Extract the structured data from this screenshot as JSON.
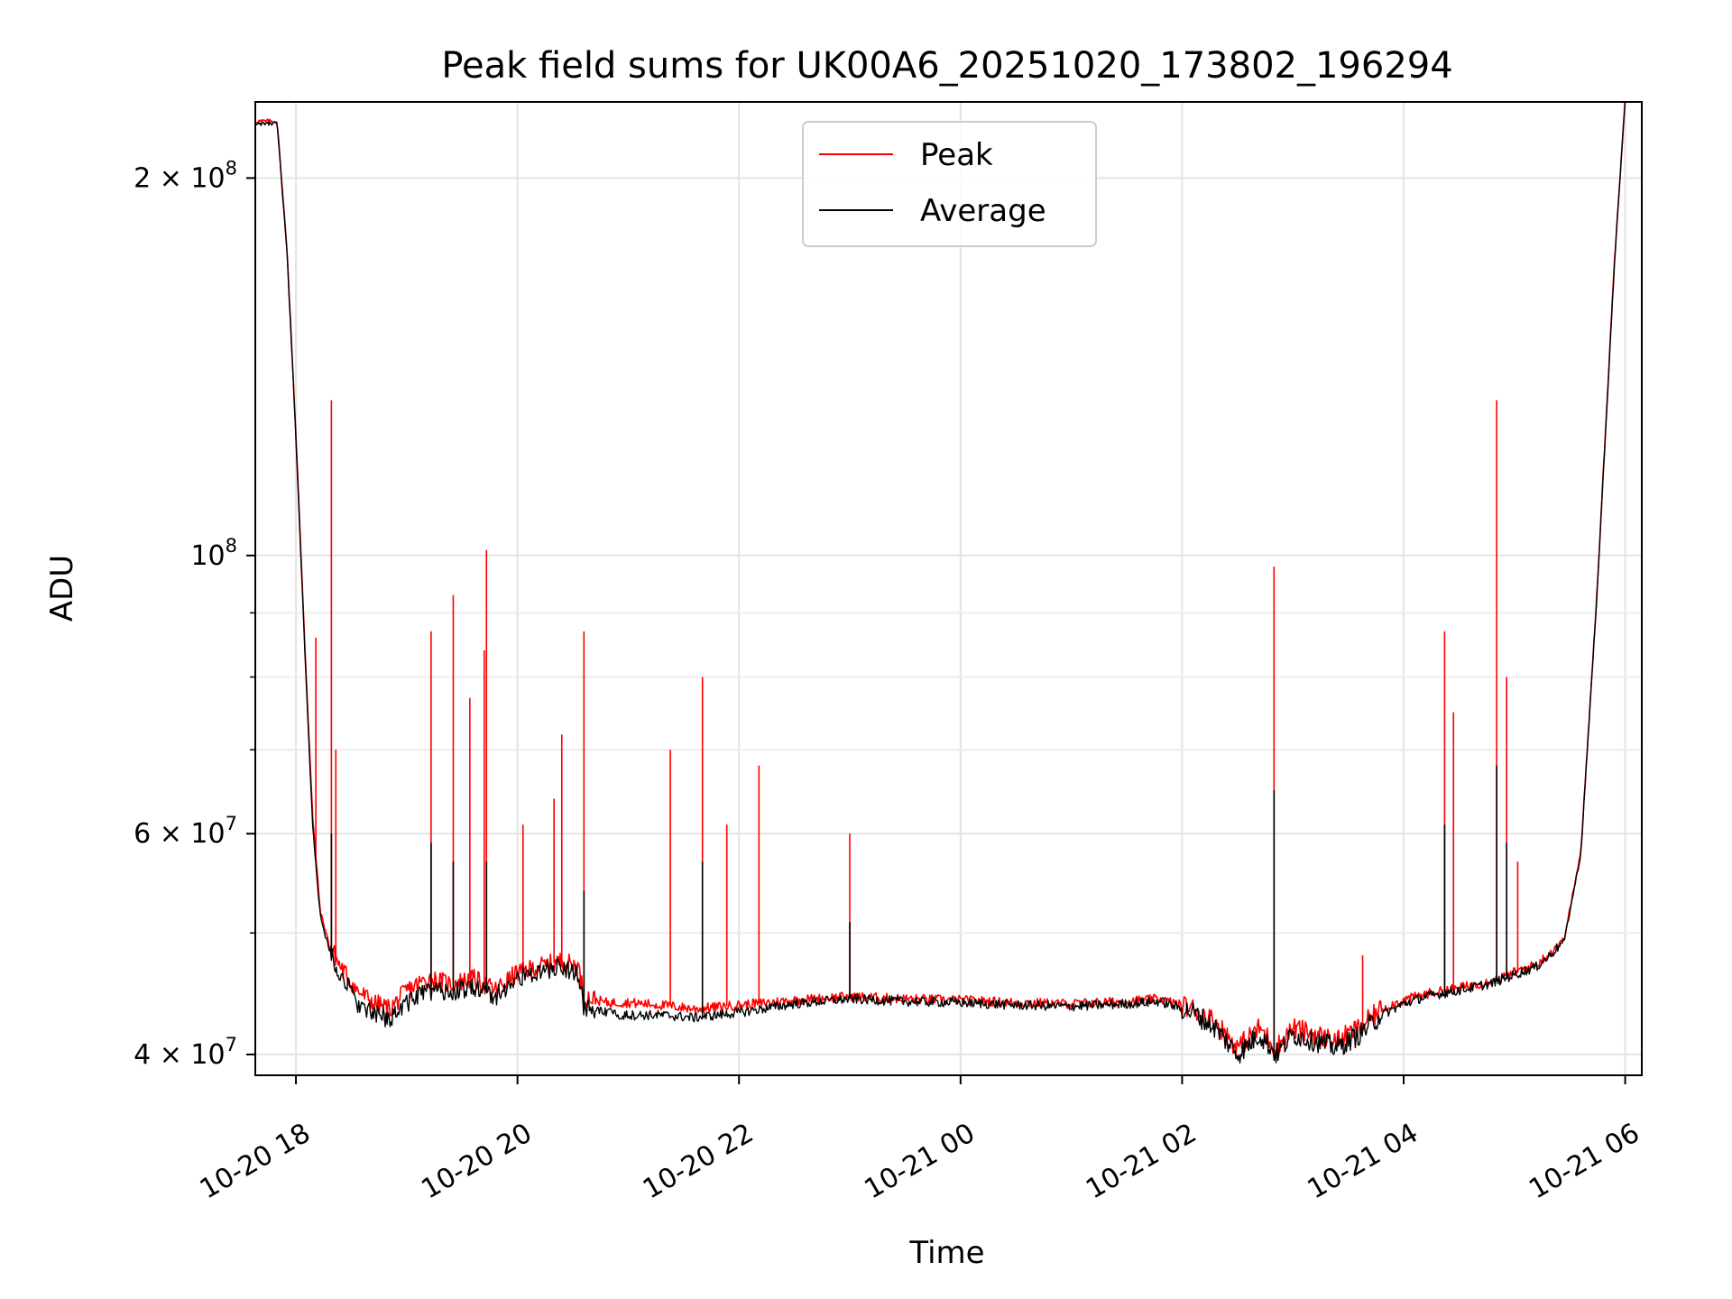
{
  "chart_data": {
    "type": "line",
    "title": "Peak field sums for UK00A6_20251020_173802_196294",
    "xlabel": "Time",
    "ylabel": "ADU",
    "yscale": "log",
    "ylim": [
      38500000,
      230000000
    ],
    "xlim_hours": [
      17.633,
      30.15
    ],
    "x_ticks": [
      {
        "label": "10-20 18",
        "hour": 18
      },
      {
        "label": "10-20 20",
        "hour": 20
      },
      {
        "label": "10-20 22",
        "hour": 22
      },
      {
        "label": "10-21 00",
        "hour": 24
      },
      {
        "label": "10-21 02",
        "hour": 26
      },
      {
        "label": "10-21 04",
        "hour": 28
      },
      {
        "label": "10-21 06",
        "hour": 30
      }
    ],
    "y_ticks": [
      {
        "base": "4 × 10",
        "exp": "7",
        "value": 40000000
      },
      {
        "base": "6 × 10",
        "exp": "7",
        "value": 60000000
      },
      {
        "base": "10",
        "exp": "8",
        "value": 100000000
      },
      {
        "base": "2 × 10",
        "exp": "8",
        "value": 200000000
      }
    ],
    "y_minor_ticks": [
      50000000,
      70000000,
      80000000,
      90000000
    ],
    "grid": true,
    "legend": {
      "position": "top-center",
      "entries": [
        {
          "label": "Peak",
          "color": "#ff0000"
        },
        {
          "label": "Average",
          "color": "#000000"
        }
      ]
    },
    "series": [
      {
        "name": "Peak",
        "color": "#ff0000",
        "x_hours": [
          17.64,
          17.83,
          17.92,
          18.0,
          18.08,
          18.15,
          18.22,
          18.3,
          18.4,
          18.55,
          18.7,
          18.85,
          19.0,
          19.2,
          19.4,
          19.6,
          19.8,
          20.0,
          20.2,
          20.4,
          20.55,
          20.6,
          20.8,
          21.0,
          21.3,
          21.6,
          22.0,
          22.5,
          23.0,
          23.5,
          24.0,
          24.5,
          25.0,
          25.5,
          25.8,
          26.1,
          26.3,
          26.5,
          26.7,
          26.85,
          27.0,
          27.2,
          27.4,
          27.6,
          27.8,
          28.0,
          28.2,
          28.5,
          28.8,
          29.0,
          29.2,
          29.3,
          29.45,
          29.6,
          29.75,
          29.9,
          30.0
        ],
        "y_values": [
          222000000,
          222000000,
          175000000,
          125000000,
          85000000,
          62000000,
          52000000,
          49000000,
          47000000,
          45000000,
          44000000,
          43500000,
          45000000,
          46000000,
          45500000,
          46000000,
          45000000,
          46500000,
          47000000,
          47500000,
          47000000,
          44500000,
          44000000,
          44000000,
          43800000,
          43500000,
          43800000,
          44200000,
          44500000,
          44300000,
          44200000,
          44000000,
          43900000,
          44100000,
          44300000,
          43500000,
          42500000,
          40500000,
          42000000,
          40500000,
          42000000,
          41500000,
          41000000,
          42000000,
          43500000,
          44200000,
          44700000,
          45200000,
          45800000,
          46500000,
          47200000,
          48000000,
          49500000,
          58000000,
          95000000,
          170000000,
          232000000
        ],
        "spikes": [
          {
            "hour": 18.18,
            "peak": 86000000
          },
          {
            "hour": 18.32,
            "peak": 133000000
          },
          {
            "hour": 18.36,
            "peak": 70000000
          },
          {
            "hour": 19.22,
            "peak": 87000000
          },
          {
            "hour": 19.42,
            "peak": 93000000
          },
          {
            "hour": 19.57,
            "peak": 77000000
          },
          {
            "hour": 19.7,
            "peak": 84000000
          },
          {
            "hour": 19.72,
            "peak": 101000000
          },
          {
            "hour": 20.05,
            "peak": 61000000
          },
          {
            "hour": 20.33,
            "peak": 64000000
          },
          {
            "hour": 20.4,
            "peak": 72000000
          },
          {
            "hour": 20.6,
            "peak": 87000000
          },
          {
            "hour": 21.38,
            "peak": 70000000
          },
          {
            "hour": 21.67,
            "peak": 80000000
          },
          {
            "hour": 21.89,
            "peak": 61000000
          },
          {
            "hour": 22.18,
            "peak": 68000000
          },
          {
            "hour": 23.0,
            "peak": 60000000
          },
          {
            "hour": 26.83,
            "peak": 98000000
          },
          {
            "hour": 27.63,
            "peak": 48000000
          },
          {
            "hour": 28.37,
            "peak": 87000000
          },
          {
            "hour": 28.45,
            "peak": 75000000
          },
          {
            "hour": 28.84,
            "peak": 133000000
          },
          {
            "hour": 28.93,
            "peak": 80000000
          },
          {
            "hour": 29.03,
            "peak": 57000000
          }
        ]
      },
      {
        "name": "Average",
        "color": "#000000",
        "x_hours": [
          17.64,
          17.83,
          17.92,
          18.0,
          18.08,
          18.15,
          18.22,
          18.3,
          18.4,
          18.55,
          18.7,
          18.85,
          19.0,
          19.2,
          19.4,
          19.6,
          19.8,
          20.0,
          20.2,
          20.4,
          20.55,
          20.6,
          20.8,
          21.0,
          21.3,
          21.6,
          22.0,
          22.5,
          23.0,
          23.5,
          24.0,
          24.5,
          25.0,
          25.5,
          25.8,
          26.1,
          26.3,
          26.5,
          26.7,
          26.85,
          27.0,
          27.2,
          27.4,
          27.6,
          27.8,
          28.0,
          28.2,
          28.5,
          28.8,
          29.0,
          29.2,
          29.3,
          29.45,
          29.6,
          29.75,
          29.9,
          30.0
        ],
        "y_values": [
          221000000,
          221000000,
          174000000,
          124000000,
          84000000,
          61000000,
          51500000,
          48500000,
          46500000,
          44000000,
          43000000,
          42800000,
          44000000,
          45000000,
          44800000,
          45300000,
          44500000,
          46000000,
          46500000,
          47000000,
          46500000,
          43500000,
          43200000,
          43000000,
          43000000,
          42800000,
          43200000,
          43900000,
          44300000,
          44100000,
          44000000,
          43800000,
          43700000,
          43900000,
          44100000,
          43200000,
          42000000,
          40000000,
          41500000,
          40000000,
          41500000,
          41000000,
          40500000,
          41500000,
          43000000,
          43900000,
          44500000,
          45000000,
          45600000,
          46300000,
          47000000,
          47800000,
          49300000,
          57800000,
          94500000,
          169000000,
          231000000
        ],
        "spikes": [
          {
            "hour": 18.32,
            "peak": 60000000
          },
          {
            "hour": 19.22,
            "peak": 59000000
          },
          {
            "hour": 19.42,
            "peak": 57000000
          },
          {
            "hour": 19.72,
            "peak": 57000000
          },
          {
            "hour": 20.6,
            "peak": 54000000
          },
          {
            "hour": 21.67,
            "peak": 57000000
          },
          {
            "hour": 23.0,
            "peak": 51000000
          },
          {
            "hour": 26.83,
            "peak": 65000000
          },
          {
            "hour": 28.37,
            "peak": 61000000
          },
          {
            "hour": 28.84,
            "peak": 68000000
          },
          {
            "hour": 28.93,
            "peak": 59000000
          }
        ]
      }
    ]
  }
}
